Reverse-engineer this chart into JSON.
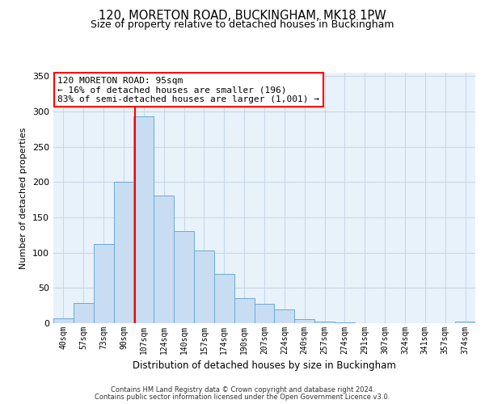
{
  "title": "120, MORETON ROAD, BUCKINGHAM, MK18 1PW",
  "subtitle": "Size of property relative to detached houses in Buckingham",
  "xlabel": "Distribution of detached houses by size in Buckingham",
  "ylabel": "Number of detached properties",
  "bar_labels": [
    "40sqm",
    "57sqm",
    "73sqm",
    "90sqm",
    "107sqm",
    "124sqm",
    "140sqm",
    "157sqm",
    "174sqm",
    "190sqm",
    "207sqm",
    "224sqm",
    "240sqm",
    "257sqm",
    "274sqm",
    "291sqm",
    "307sqm",
    "324sqm",
    "341sqm",
    "357sqm",
    "374sqm"
  ],
  "bar_values": [
    7,
    29,
    112,
    200,
    293,
    181,
    131,
    103,
    70,
    35,
    28,
    20,
    6,
    2,
    1,
    0,
    0,
    0,
    0,
    0,
    2
  ],
  "bar_color": "#c9ddf2",
  "bar_edge_color": "#6aaad4",
  "vline_x": 3.57,
  "vline_color": "red",
  "annotation_text": "120 MORETON ROAD: 95sqm\n← 16% of detached houses are smaller (196)\n83% of semi-detached houses are larger (1,001) →",
  "annotation_box_color": "white",
  "annotation_box_edge_color": "red",
  "ylim": [
    0,
    355
  ],
  "yticks": [
    0,
    50,
    100,
    150,
    200,
    250,
    300,
    350
  ],
  "grid_color": "#c8d8e8",
  "background_color": "#e8f2fb",
  "footer_line1": "Contains HM Land Registry data © Crown copyright and database right 2024.",
  "footer_line2": "Contains public sector information licensed under the Open Government Licence v3.0."
}
